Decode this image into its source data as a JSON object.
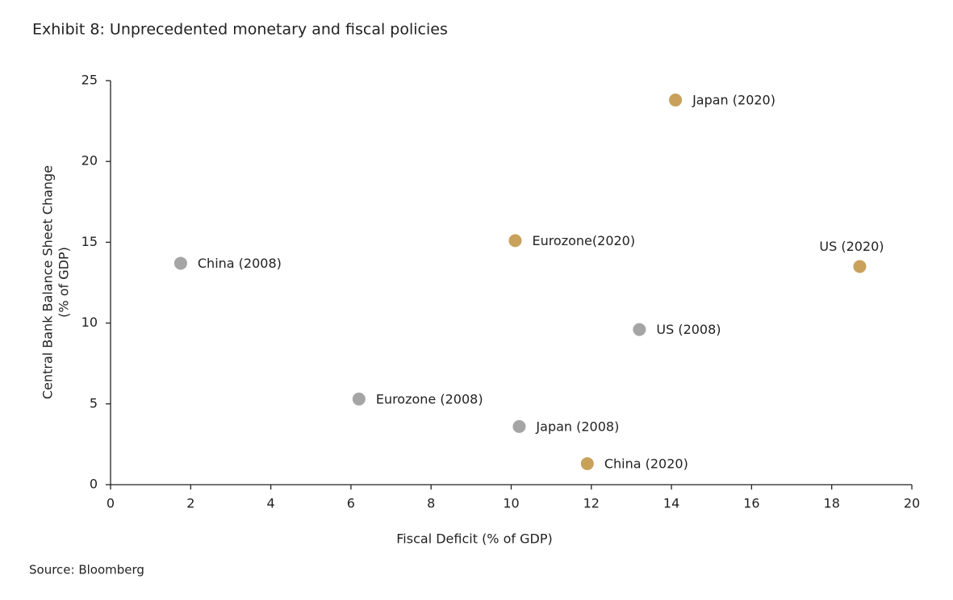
{
  "chart_data": {
    "type": "scatter",
    "title": "Exhibit 8: Unprecedented monetary and fiscal policies",
    "xlabel": "Fiscal Deficit (% of GDP)",
    "ylabel": [
      "Central Bank Balance Sheet Change",
      "(% of GDP)"
    ],
    "source": "Source: Bloomberg",
    "xlim": [
      0,
      20
    ],
    "xticks": [
      0,
      2,
      4,
      6,
      8,
      10,
      12,
      14,
      16,
      18,
      20
    ],
    "ylim": [
      0,
      25
    ],
    "yticks": [
      0,
      5,
      10,
      15,
      20,
      25
    ],
    "grid": false,
    "series": [
      {
        "color": "#a5a5a5",
        "x": [
          1.75,
          6.2,
          10.2,
          13.2
        ],
        "values": [
          13.7,
          5.3,
          3.6,
          9.6
        ],
        "labels": [
          "China (2008)",
          "Eurozone (2008)",
          "Japan (2008)",
          "US (2008)"
        ]
      },
      {
        "color": "#c9a15b",
        "x": [
          14.1,
          10.1,
          18.7,
          11.9
        ],
        "values": [
          23.8,
          15.1,
          13.5,
          1.3
        ],
        "labels": [
          "Japan (2020)",
          "Eurozone(2020)",
          "US (2020)",
          "China (2020)"
        ]
      }
    ]
  }
}
